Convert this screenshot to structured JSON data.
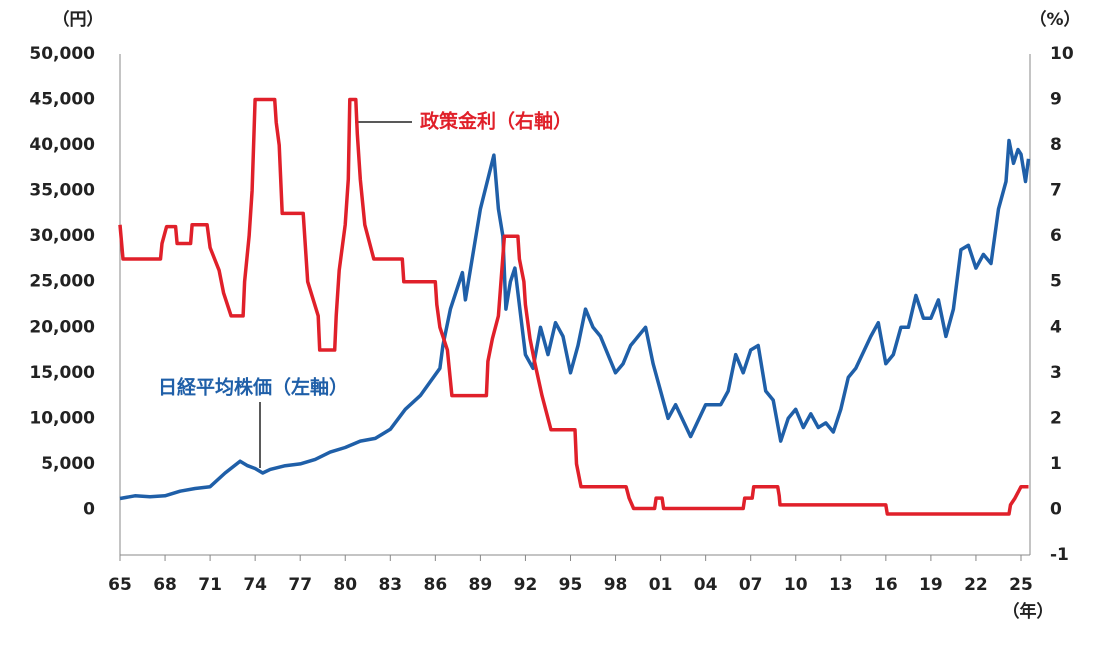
{
  "chart_data": {
    "type": "line",
    "y_label": "（円）",
    "y2_label": "（%）",
    "x_label": "（年）",
    "xlim": [
      1965,
      2025.6
    ],
    "xticks": [
      {
        "value": 1965,
        "label": "65"
      },
      {
        "value": 1968,
        "label": "68"
      },
      {
        "value": 1971,
        "label": "71"
      },
      {
        "value": 1974,
        "label": "74"
      },
      {
        "value": 1977,
        "label": "77"
      },
      {
        "value": 1980,
        "label": "80"
      },
      {
        "value": 1983,
        "label": "83"
      },
      {
        "value": 1986,
        "label": "86"
      },
      {
        "value": 1989,
        "label": "89"
      },
      {
        "value": 1992,
        "label": "92"
      },
      {
        "value": 1995,
        "label": "95"
      },
      {
        "value": 1998,
        "label": "98"
      },
      {
        "value": 2001,
        "label": "01"
      },
      {
        "value": 2004,
        "label": "04"
      },
      {
        "value": 2007,
        "label": "07"
      },
      {
        "value": 2010,
        "label": "10"
      },
      {
        "value": 2013,
        "label": "13"
      },
      {
        "value": 2016,
        "label": "16"
      },
      {
        "value": 2019,
        "label": "19"
      },
      {
        "value": 2022,
        "label": "22"
      },
      {
        "value": 2025,
        "label": "25"
      }
    ],
    "ylim": [
      -5000,
      50000
    ],
    "yticks": [
      0,
      {
        "value": 5000,
        "label": "5,000"
      },
      {
        "value": 10000,
        "label": "10,000"
      },
      {
        "value": 15000,
        "label": "15,000"
      },
      {
        "value": 20000,
        "label": "20,000"
      },
      {
        "value": 25000,
        "label": "25,000"
      },
      {
        "value": 30000,
        "label": "30,000"
      },
      {
        "value": 35000,
        "label": "35,000"
      },
      {
        "value": 40000,
        "label": "40,000"
      },
      {
        "value": 45000,
        "label": "45,000"
      },
      {
        "value": 50000,
        "label": "50,000"
      }
    ],
    "y2lim": [
      -1,
      10
    ],
    "y2ticks": [
      -1,
      0,
      1,
      2,
      3,
      4,
      5,
      6,
      7,
      8,
      9,
      10
    ],
    "series": [
      {
        "name": "日経平均株価（左軸）",
        "color": "#1f5fa8",
        "axis": "y",
        "x": [
          1965,
          1966,
          1967,
          1968,
          1969,
          1970,
          1971,
          1972,
          1973,
          1973.5,
          1974,
          1974.5,
          1975,
          1976,
          1977,
          1978,
          1979,
          1980,
          1981,
          1982,
          1983,
          1984,
          1985,
          1986.3,
          1986.5,
          1987,
          1987.8,
          1988,
          1988.5,
          1989,
          1989.9,
          1990.2,
          1990.5,
          1990.7,
          1991,
          1991.3,
          1992,
          1992.5,
          1993,
          1993.5,
          1994,
          1994.5,
          1995,
          1995.5,
          1996,
          1996.5,
          1997,
          1998,
          1998.5,
          1999,
          2000,
          2000.5,
          2001,
          2001.5,
          2002,
          2003,
          2004,
          2005,
          2005.5,
          2006,
          2006.5,
          2007,
          2007.5,
          2008,
          2008.5,
          2009,
          2009.5,
          2010,
          2010.5,
          2011,
          2011.5,
          2012,
          2012.5,
          2013,
          2013.5,
          2014,
          2015,
          2015.5,
          2016,
          2016.5,
          2017,
          2017.5,
          2018,
          2018.5,
          2019,
          2019.5,
          2020,
          2020.5,
          2021,
          2021.5,
          2022,
          2022.5,
          2023,
          2023.5,
          2024,
          2024.2,
          2024.5,
          2024.8,
          2025,
          2025.3,
          2025.5
        ],
        "values": [
          1200,
          1500,
          1400,
          1500,
          2000,
          2300,
          2500,
          4000,
          5300,
          4800,
          4500,
          4000,
          4400,
          4800,
          5000,
          5500,
          6300,
          6800,
          7500,
          7800,
          8800,
          11000,
          12500,
          15500,
          18000,
          22000,
          26000,
          23000,
          28000,
          33000,
          38900,
          33000,
          30000,
          22000,
          25000,
          26500,
          17000,
          15500,
          20000,
          17000,
          20500,
          19000,
          15000,
          18000,
          22000,
          20000,
          19000,
          15000,
          16000,
          18000,
          20000,
          16000,
          13000,
          10000,
          11500,
          8000,
          11500,
          11500,
          13000,
          17000,
          15000,
          17500,
          18000,
          13000,
          12000,
          7500,
          10000,
          11000,
          9000,
          10500,
          9000,
          9500,
          8500,
          11000,
          14500,
          15500,
          19000,
          20500,
          16000,
          17000,
          20000,
          20000,
          23500,
          21000,
          21000,
          23000,
          19000,
          22000,
          28500,
          29000,
          26500,
          28000,
          27000,
          33000,
          36000,
          40500,
          38000,
          39500,
          39000,
          36000,
          38500
        ]
      },
      {
        "name": "政策金利（右軸）",
        "color": "#e0202a",
        "axis": "y2",
        "x": [
          1965,
          1965.2,
          1967.7,
          1967.8,
          1968.1,
          1968.7,
          1968.8,
          1969.7,
          1969.8,
          1970.8,
          1970.9,
          1971,
          1971.3,
          1971.6,
          1971.9,
          1972.4,
          1973.2,
          1973.3,
          1973.6,
          1973.8,
          1974,
          1975.3,
          1975.4,
          1975.6,
          1975.8,
          1977.2,
          1977.3,
          1977.5,
          1978.2,
          1978.3,
          1979.3,
          1979.4,
          1979.6,
          1980,
          1980.2,
          1980.3,
          1980.7,
          1980.8,
          1981,
          1981.3,
          1981.9,
          1983.8,
          1983.9,
          1986,
          1986.1,
          1986.3,
          1986.8,
          1987.1,
          1989.4,
          1989.5,
          1989.8,
          1990.2,
          1990.6,
          1991.5,
          1991.6,
          1991.9,
          1992,
          1992.3,
          1992.6,
          1993.1,
          1993.7,
          1995.3,
          1995.4,
          1995.7,
          1998.7,
          1998.9,
          1999.2,
          2000.6,
          2000.7,
          2001.1,
          2001.2,
          2006.5,
          2006.6,
          2007.1,
          2007.2,
          2008.8,
          2008.9,
          2008.95,
          2016,
          2016.1,
          2024.2,
          2024.3,
          2024.6,
          2025,
          2025.5
        ],
        "values": [
          6.25,
          5.5,
          5.5,
          5.84,
          6.21,
          6.21,
          5.84,
          5.84,
          6.25,
          6.25,
          6.0,
          5.75,
          5.5,
          5.25,
          4.75,
          4.25,
          4.25,
          5.0,
          6.0,
          7.0,
          9.0,
          9.0,
          8.5,
          8.0,
          6.5,
          6.5,
          6.0,
          5.0,
          4.25,
          3.5,
          3.5,
          4.25,
          5.25,
          6.25,
          7.25,
          9.0,
          9.0,
          8.25,
          7.25,
          6.25,
          5.5,
          5.5,
          5.0,
          5.0,
          4.5,
          4.0,
          3.5,
          2.5,
          2.5,
          3.25,
          3.75,
          4.25,
          6.0,
          6.0,
          5.5,
          5.0,
          4.5,
          3.75,
          3.25,
          2.5,
          1.75,
          1.75,
          1.0,
          0.5,
          0.5,
          0.25,
          0.02,
          0.02,
          0.25,
          0.25,
          0.02,
          0.02,
          0.25,
          0.25,
          0.5,
          0.5,
          0.3,
          0.1,
          0.1,
          -0.1,
          -0.1,
          0.1,
          0.25,
          0.5,
          0.5
        ]
      }
    ]
  }
}
